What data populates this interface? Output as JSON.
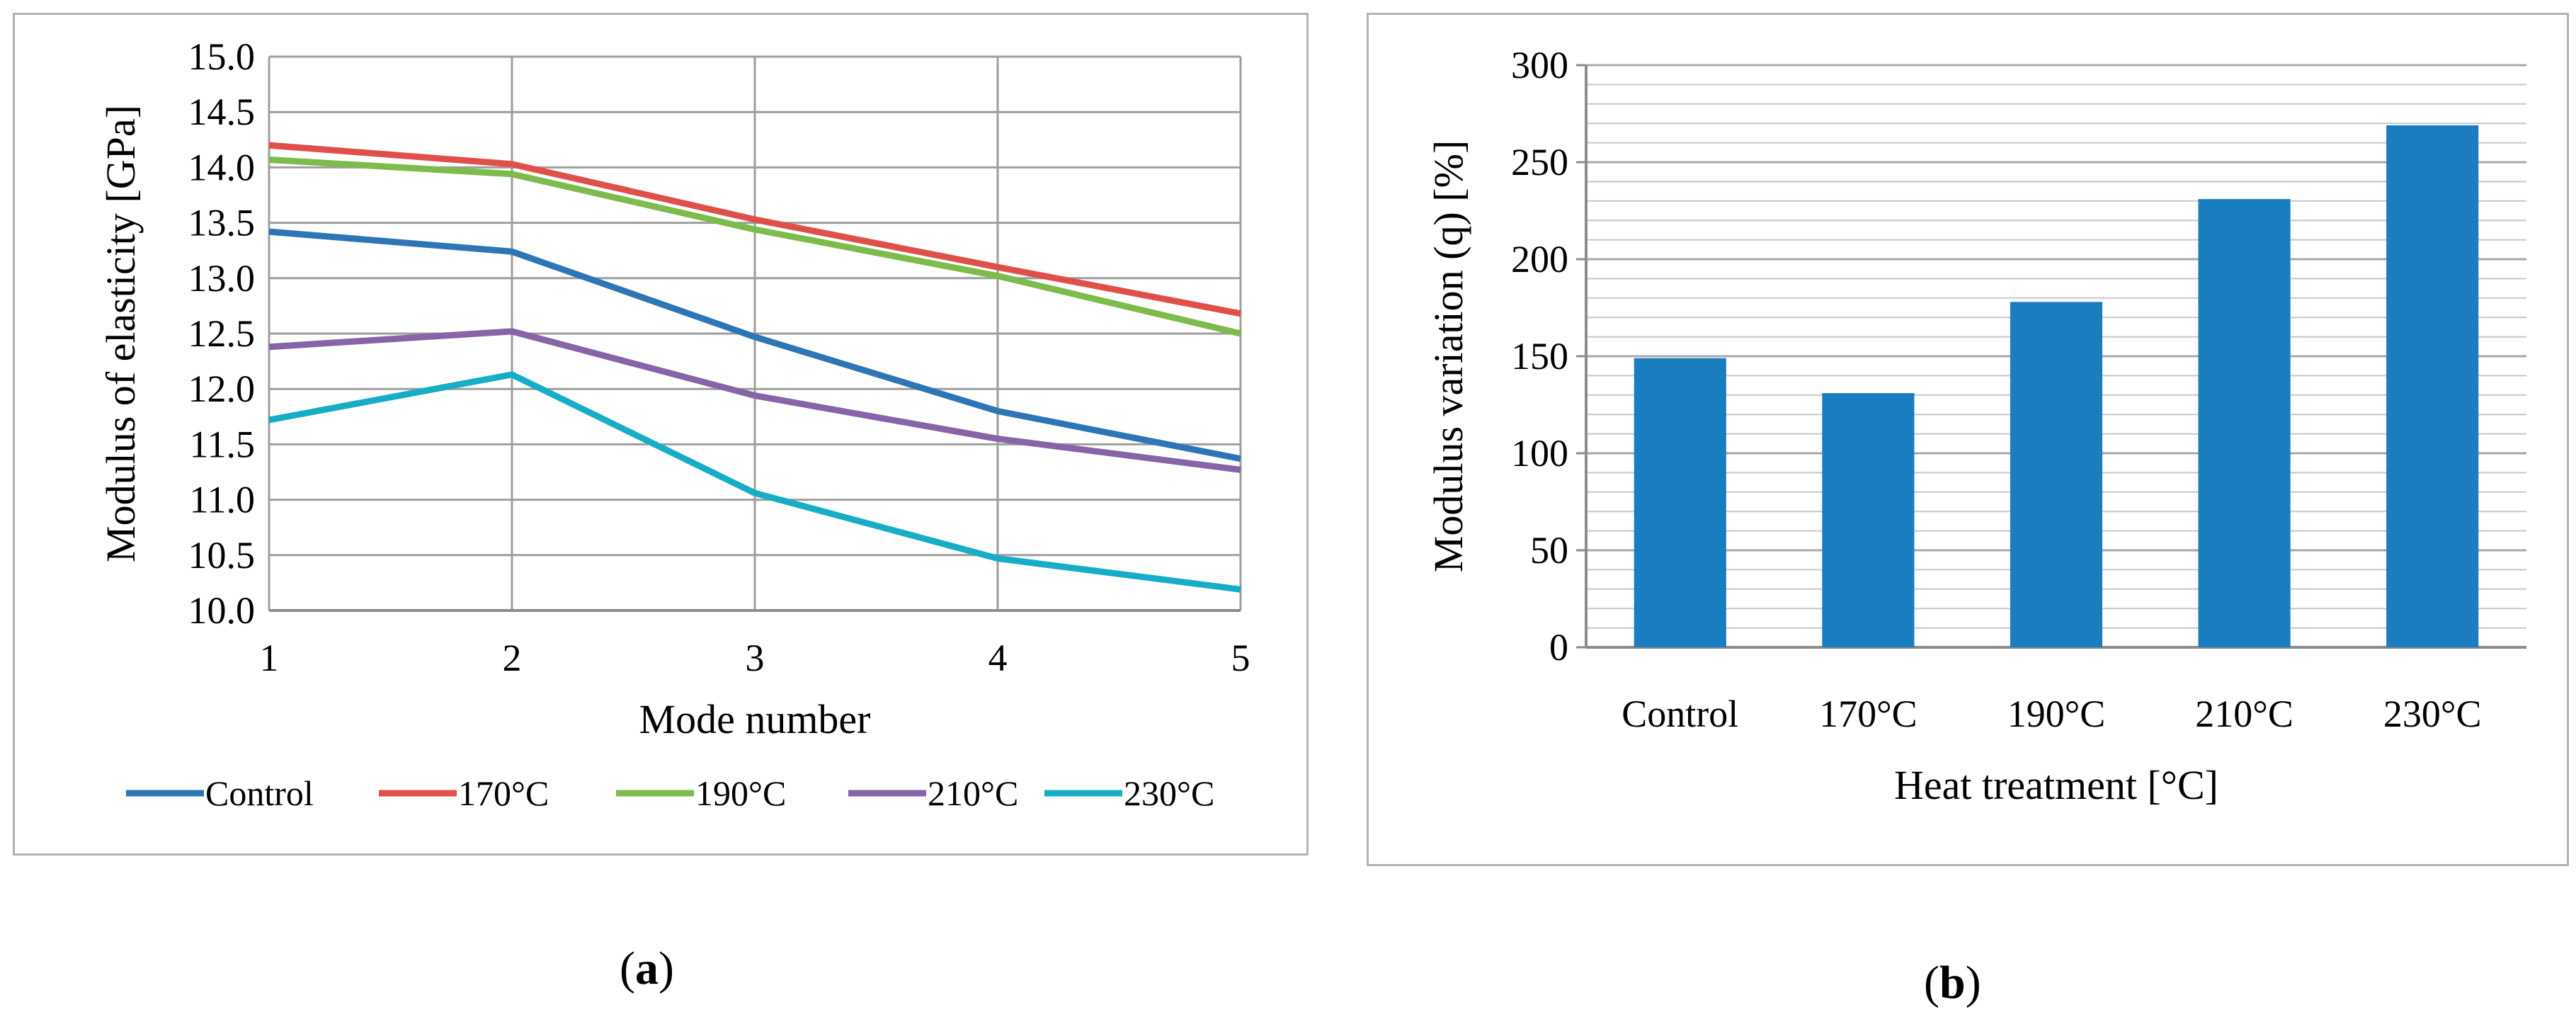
{
  "panels": {
    "a": {
      "caption_open": "(",
      "caption_letter": "a",
      "caption_close": ")"
    },
    "b": {
      "caption_open": "(",
      "caption_letter": "b",
      "caption_close": ")"
    }
  },
  "chart_data": [
    {
      "type": "line",
      "panel": "a",
      "title": "",
      "xlabel": "Mode number",
      "ylabel": "Modulus of elasticity [GPa]",
      "x": [
        1,
        2,
        3,
        4,
        5
      ],
      "x_tick_labels": [
        "1",
        "2",
        "3",
        "4",
        "5"
      ],
      "xlim": [
        1,
        5
      ],
      "ylim": [
        10.0,
        15.0
      ],
      "y_tick_labels": [
        "10.0",
        "10.5",
        "11.0",
        "11.5",
        "12.0",
        "12.5",
        "13.0",
        "13.5",
        "14.0",
        "14.5",
        "15.0"
      ],
      "y_ticks": [
        10.0,
        10.5,
        11.0,
        11.5,
        12.0,
        12.5,
        13.0,
        13.5,
        14.0,
        14.5,
        15.0
      ],
      "grid": true,
      "legend_position": "bottom",
      "series": [
        {
          "name": "Control",
          "color": "#2E75B6",
          "values": [
            13.42,
            13.24,
            12.47,
            11.8,
            11.37
          ]
        },
        {
          "name": "170°C",
          "color": "#E0504A",
          "values": [
            14.2,
            14.03,
            13.53,
            13.1,
            12.68
          ]
        },
        {
          "name": "190°C",
          "color": "#7DBB4C",
          "values": [
            14.07,
            13.94,
            13.44,
            13.02,
            12.5
          ]
        },
        {
          "name": "210°C",
          "color": "#8763A8",
          "values": [
            12.38,
            12.52,
            11.94,
            11.55,
            11.27
          ]
        },
        {
          "name": "230°C",
          "color": "#17ADC7",
          "values": [
            11.72,
            12.13,
            11.06,
            10.47,
            10.19
          ]
        }
      ]
    },
    {
      "type": "bar",
      "panel": "b",
      "title": "",
      "xlabel": "Heat treatment [°C]",
      "ylabel": "Modulus variation (q) [%]",
      "categories": [
        "Control",
        "170°C",
        "190°C",
        "210°C",
        "230°C"
      ],
      "values": [
        149,
        131,
        178,
        231,
        269
      ],
      "ylim": [
        0,
        300
      ],
      "y_ticks": [
        0,
        50,
        100,
        150,
        200,
        250,
        300
      ],
      "y_tick_labels": [
        "0",
        "50",
        "100",
        "150",
        "200",
        "250",
        "300"
      ],
      "minor_grid_step": 10,
      "grid": true,
      "bar_color": "#1A7DC0"
    }
  ]
}
